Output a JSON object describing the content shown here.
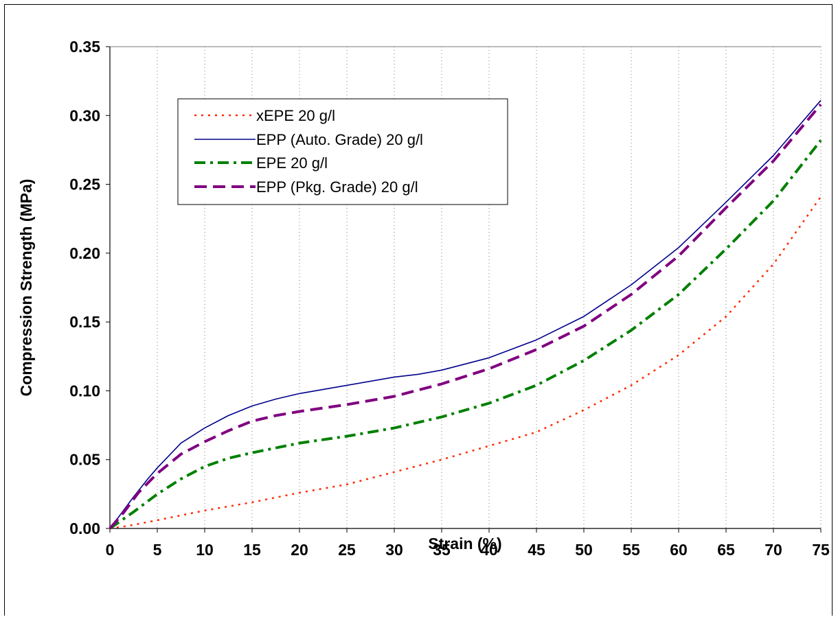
{
  "chart_data": {
    "type": "line",
    "title": "",
    "xlabel": "Strain (%)",
    "ylabel": "Compression Strength (MPa)",
    "xlim": [
      0,
      75
    ],
    "ylim": [
      0,
      0.35
    ],
    "x_ticks": [
      "0",
      "5",
      "10",
      "15",
      "20",
      "25",
      "30",
      "35",
      "40",
      "45",
      "50",
      "55",
      "60",
      "65",
      "70",
      "75"
    ],
    "y_ticks": [
      "0.00",
      "0.05",
      "0.10",
      "0.15",
      "0.20",
      "0.25",
      "0.30",
      "0.35"
    ],
    "grid": {
      "vertical": "dotted",
      "horizontal": "none"
    },
    "legend_position": "upper-left",
    "series": [
      {
        "name": "xEPE 20 g/l",
        "color": "#ff2a00",
        "style": "dotted",
        "points": [
          [
            0,
            0
          ],
          [
            2,
            0.002
          ],
          [
            5,
            0.006
          ],
          [
            10,
            0.013
          ],
          [
            15,
            0.019
          ],
          [
            20,
            0.026
          ],
          [
            25,
            0.032
          ],
          [
            30,
            0.041
          ],
          [
            35,
            0.05
          ],
          [
            40,
            0.06
          ],
          [
            45,
            0.07
          ],
          [
            50,
            0.086
          ],
          [
            55,
            0.104
          ],
          [
            60,
            0.126
          ],
          [
            65,
            0.154
          ],
          [
            70,
            0.192
          ],
          [
            75,
            0.241
          ]
        ]
      },
      {
        "name": "EPP (Auto. Grade) 20 g/l",
        "color": "#00008b",
        "style": "solid",
        "points": [
          [
            0,
            0
          ],
          [
            1,
            0.009
          ],
          [
            2.5,
            0.023
          ],
          [
            4,
            0.036
          ],
          [
            5,
            0.044
          ],
          [
            7.5,
            0.062
          ],
          [
            10,
            0.073
          ],
          [
            12.5,
            0.082
          ],
          [
            15,
            0.089
          ],
          [
            17.5,
            0.094
          ],
          [
            20,
            0.098
          ],
          [
            25,
            0.104
          ],
          [
            30,
            0.11
          ],
          [
            32.5,
            0.112
          ],
          [
            35,
            0.115
          ],
          [
            40,
            0.124
          ],
          [
            45,
            0.137
          ],
          [
            50,
            0.154
          ],
          [
            55,
            0.177
          ],
          [
            60,
            0.204
          ],
          [
            65,
            0.237
          ],
          [
            70,
            0.271
          ],
          [
            75,
            0.311
          ]
        ]
      },
      {
        "name": "EPE 20 g/l",
        "color": "#008000",
        "style": "dashdot",
        "points": [
          [
            0,
            0
          ],
          [
            2.5,
            0.012
          ],
          [
            5,
            0.025
          ],
          [
            7.5,
            0.036
          ],
          [
            10,
            0.045
          ],
          [
            12.5,
            0.051
          ],
          [
            15,
            0.055
          ],
          [
            20,
            0.062
          ],
          [
            25,
            0.067
          ],
          [
            30,
            0.073
          ],
          [
            35,
            0.081
          ],
          [
            40,
            0.091
          ],
          [
            45,
            0.104
          ],
          [
            50,
            0.122
          ],
          [
            55,
            0.144
          ],
          [
            60,
            0.17
          ],
          [
            65,
            0.203
          ],
          [
            70,
            0.238
          ],
          [
            75,
            0.282
          ]
        ]
      },
      {
        "name": "EPP (Pkg. Grade) 20 g/l",
        "color": "#800080",
        "style": "dashed",
        "points": [
          [
            0,
            0
          ],
          [
            1.5,
            0.012
          ],
          [
            3,
            0.026
          ],
          [
            5,
            0.04
          ],
          [
            7.5,
            0.054
          ],
          [
            10,
            0.063
          ],
          [
            12.5,
            0.071
          ],
          [
            15,
            0.078
          ],
          [
            17.5,
            0.082
          ],
          [
            20,
            0.085
          ],
          [
            25,
            0.09
          ],
          [
            30,
            0.096
          ],
          [
            35,
            0.105
          ],
          [
            40,
            0.116
          ],
          [
            45,
            0.13
          ],
          [
            50,
            0.147
          ],
          [
            55,
            0.17
          ],
          [
            60,
            0.198
          ],
          [
            65,
            0.233
          ],
          [
            70,
            0.267
          ],
          [
            75,
            0.308
          ]
        ]
      }
    ]
  }
}
